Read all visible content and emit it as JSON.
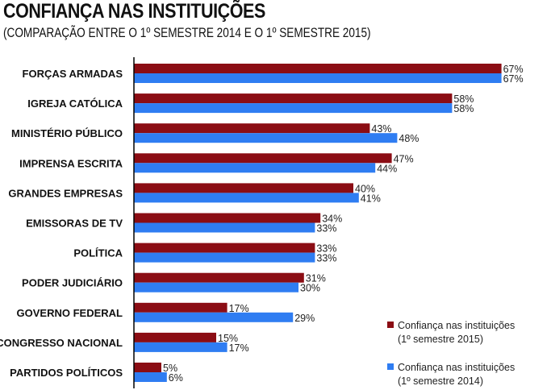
{
  "title": "CONFIANÇA NAS INSTITUIÇÕES",
  "subtitle": "(COMPARAÇÃO ENTRE O 1º SEMESTRE 2014 E O 1º SEMESTRE 2015)",
  "colors": {
    "series_2015": "#8b0d14",
    "series_2014": "#2f7df2",
    "axis": "#000000"
  },
  "chart_data": {
    "type": "bar",
    "orientation": "horizontal",
    "title": "CONFIANÇA NAS INSTITUIÇÕES",
    "subtitle": "(COMPARAÇÃO ENTRE O 1º SEMESTRE 2014 E O 1º SEMESTRE 2015)",
    "xlabel": "",
    "ylabel": "",
    "xlim": [
      0,
      75
    ],
    "grid": false,
    "legend_position": "bottom-right",
    "categories": [
      "FORÇAS ARMADAS",
      "IGREJA CATÓLICA",
      "MINISTÉRIO PÚBLICO",
      "IMPRENSA ESCRITA",
      "GRANDES EMPRESAS",
      "EMISSORAS DE TV",
      "POLÍTICA",
      "PODER JUDICIÁRIO",
      "GOVERNO FEDERAL",
      "CONGRESSO NACIONAL",
      "PARTIDOS POLÍTICOS"
    ],
    "series": [
      {
        "name": "Confiança nas instituições (1º semestre 2015)",
        "legend_lines": [
          "Confiança nas instituições",
          "(1º semestre 2015)"
        ],
        "color": "#8b0d14",
        "values": [
          67,
          58,
          43,
          47,
          40,
          34,
          33,
          31,
          17,
          15,
          5
        ],
        "labels": [
          "67%",
          "58%",
          "43%",
          "47%",
          "40%",
          "34%",
          "33%",
          "31%",
          "17%",
          "15%",
          "5%"
        ]
      },
      {
        "name": "Confiança nas instituições (1º semestre 2014)",
        "legend_lines": [
          "Confiança nas instituições",
          "(1º semestre 2014)"
        ],
        "color": "#2f7df2",
        "values": [
          67,
          58,
          48,
          44,
          41,
          33,
          33,
          30,
          29,
          17,
          6
        ],
        "labels": [
          "67%",
          "58%",
          "48%",
          "44%",
          "41%",
          "33%",
          "33%",
          "30%",
          "29%",
          "17%",
          "6%"
        ]
      }
    ]
  }
}
